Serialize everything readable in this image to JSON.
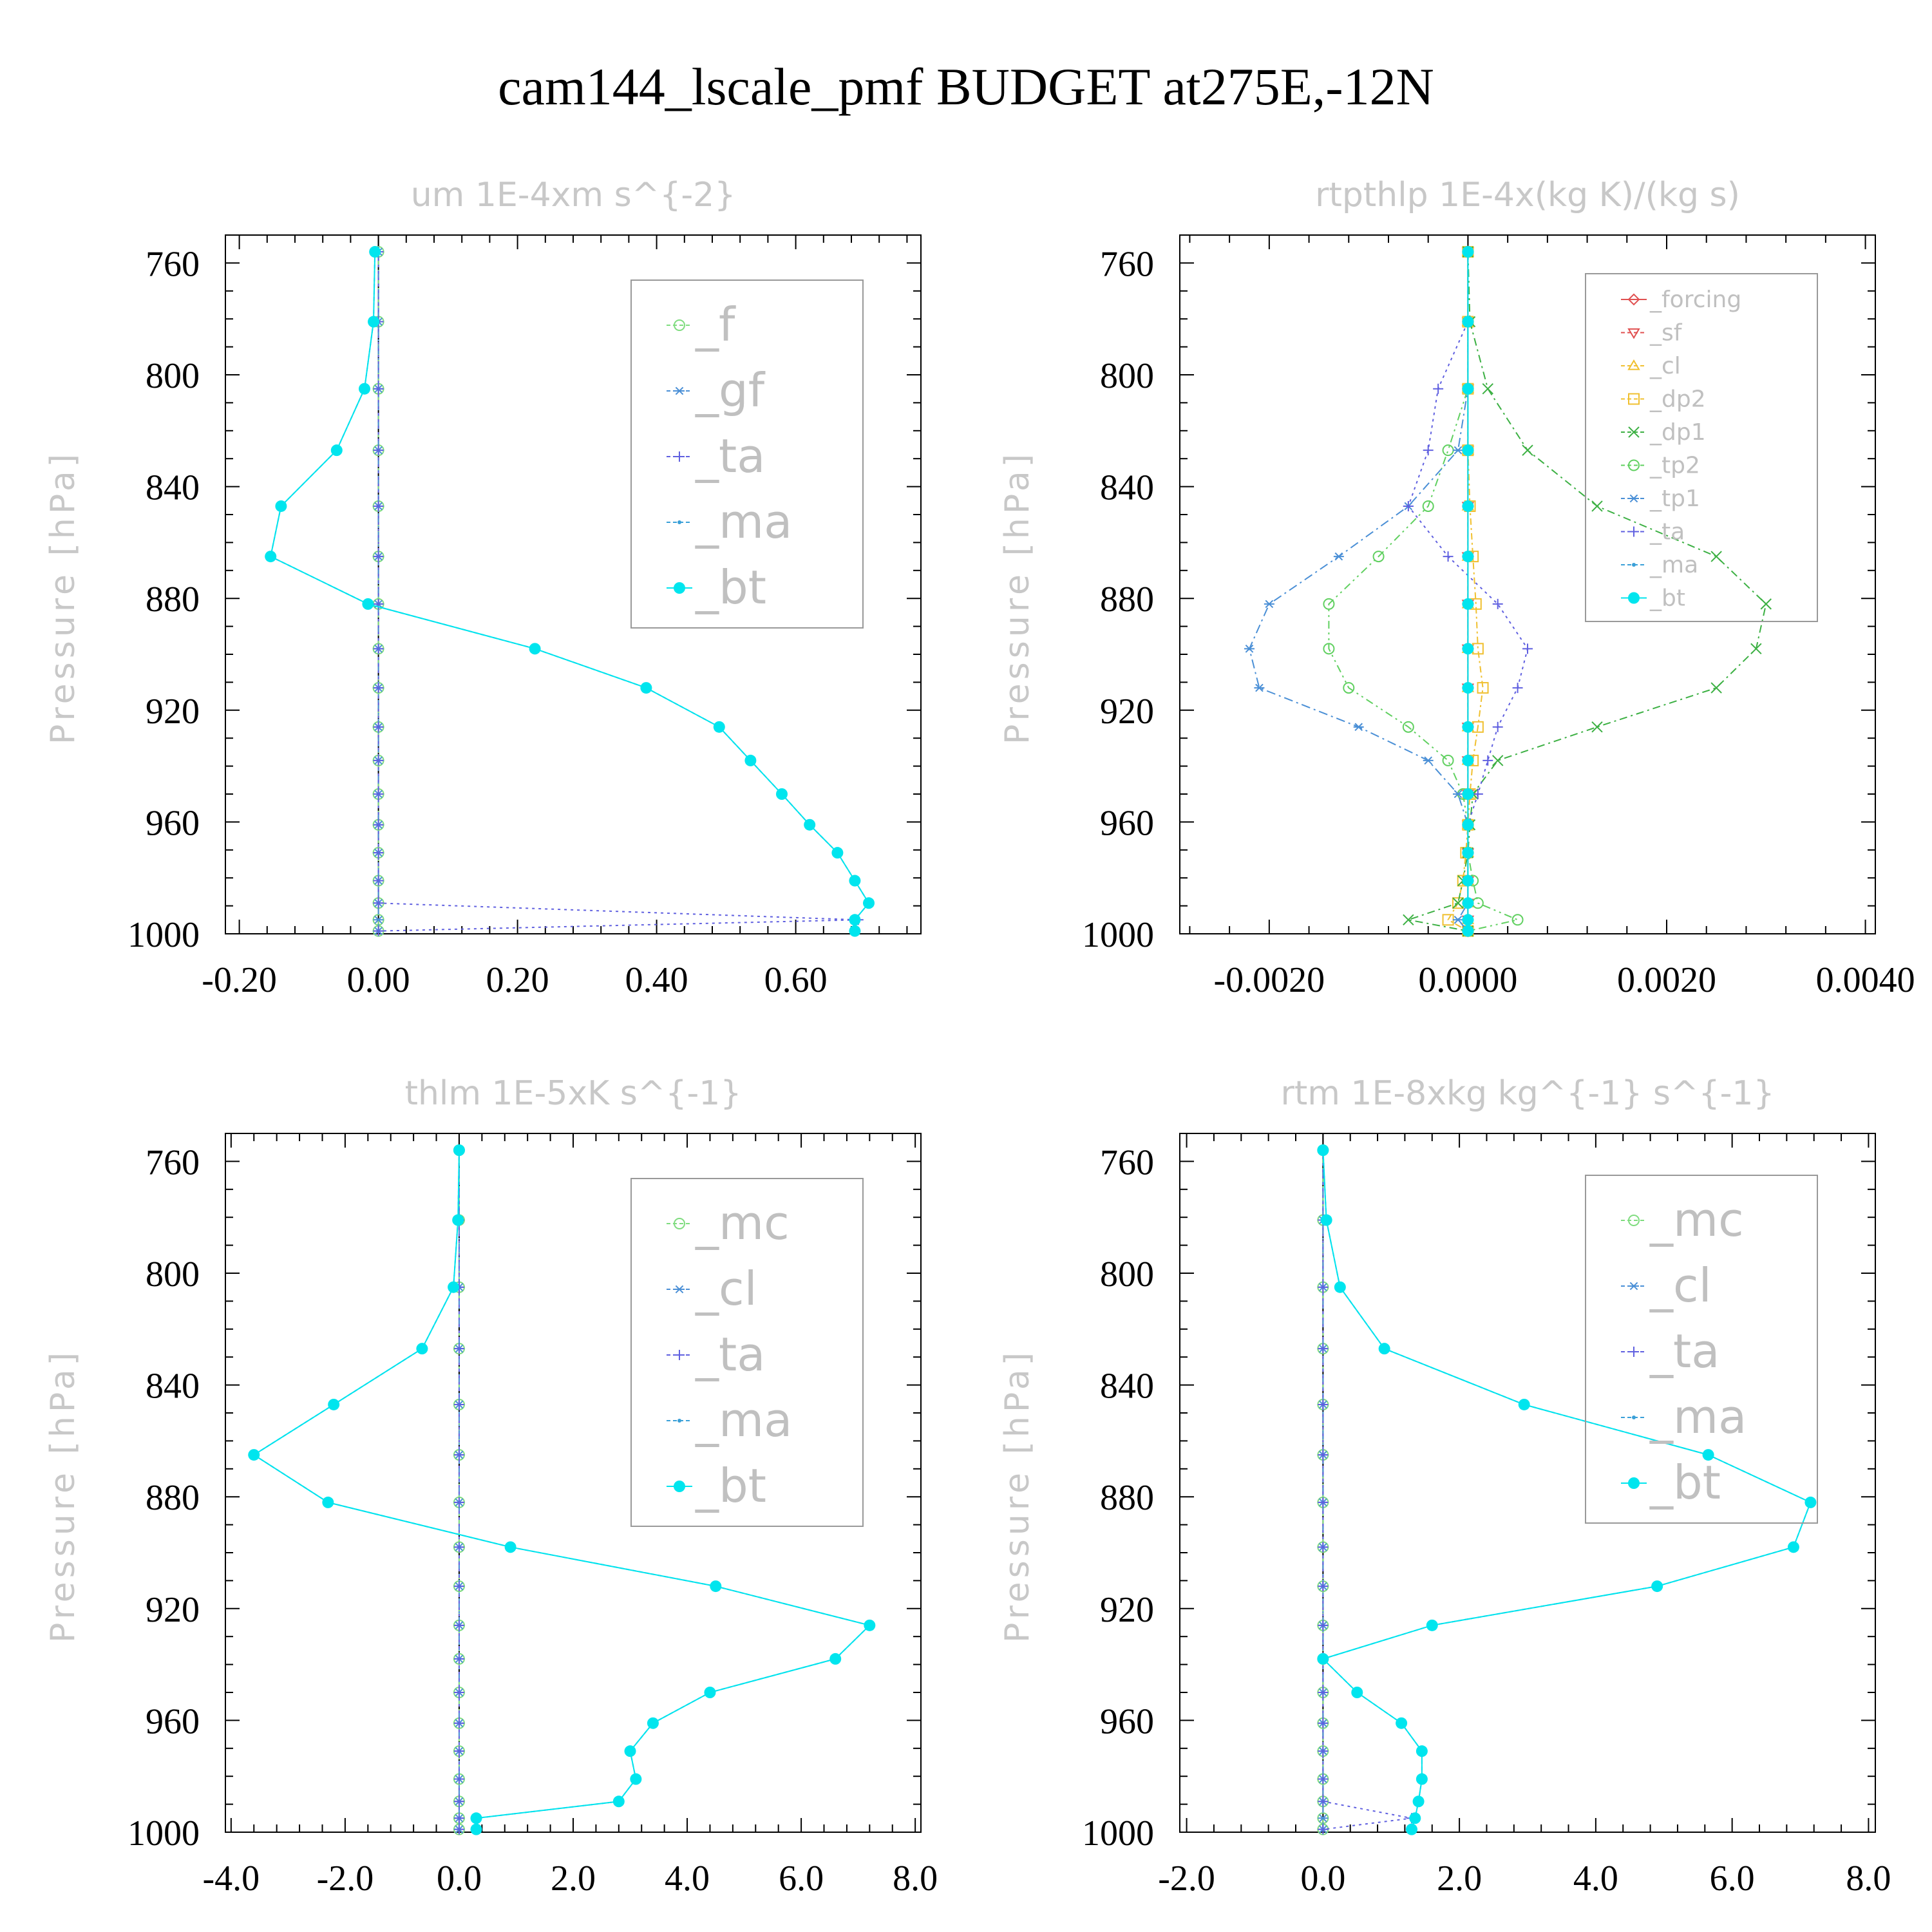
{
  "title": "cam144_lscale_pmf  BUDGET at275E,-12N",
  "chart_data": [
    {
      "type": "line",
      "title": "um   1E-4xm s^{-2}",
      "ylabel": "Pressure [hPa]",
      "ylim": [
        1000,
        750
      ],
      "yticks": [
        760,
        800,
        840,
        880,
        920,
        960,
        1000
      ],
      "xlim": [
        -0.22,
        0.78
      ],
      "xticks": [
        -0.2,
        0.0,
        0.2,
        0.4,
        0.6
      ],
      "xtick_labels": [
        "-0.20",
        "0.00",
        "0.20",
        "0.40",
        "0.60"
      ],
      "legend_position": "top-right",
      "pressure": [
        756,
        781,
        805,
        827,
        847,
        865,
        882,
        898,
        912,
        926,
        938,
        950,
        961,
        971,
        981,
        989,
        995,
        999
      ],
      "series": [
        {
          "name": "_f",
          "color": "#7fdc7f",
          "marker": "circle-open",
          "dash": "8,6",
          "values": [
            0,
            0,
            0,
            0,
            0,
            0,
            0,
            0,
            0,
            0,
            0,
            0,
            0,
            0,
            0,
            0,
            0,
            0
          ]
        },
        {
          "name": "_gf",
          "color": "#4a8fd6",
          "marker": "asterisk",
          "dash": "14,6,3,6",
          "values": [
            0,
            0,
            0,
            0,
            0,
            0,
            0,
            0,
            0,
            0,
            0,
            0,
            0,
            0,
            0,
            0,
            0,
            0
          ]
        },
        {
          "name": "_ta",
          "color": "#6060e0",
          "marker": "plus",
          "dash": "4,6",
          "values": [
            0,
            0,
            0,
            0,
            0,
            0,
            0,
            0,
            0,
            0,
            0,
            0,
            0,
            0,
            0,
            0,
            0.69,
            0.0
          ]
        },
        {
          "name": "_ma",
          "color": "#3aa0d8",
          "marker": "dot",
          "dash": "6,4",
          "values": [
            -0.005,
            -0.007,
            -0.02,
            -0.06,
            -0.14,
            -0.155,
            -0.015,
            0.225,
            0.385,
            0.49,
            0.535,
            0.58,
            0.62,
            0.66,
            0.685,
            0.705,
            0.685,
            0.685
          ]
        },
        {
          "name": "_bt",
          "color": "#00e5ee",
          "marker": "dot-big",
          "dash": "none",
          "values": [
            -0.005,
            -0.007,
            -0.02,
            -0.06,
            -0.14,
            -0.155,
            -0.015,
            0.225,
            0.385,
            0.49,
            0.535,
            0.58,
            0.62,
            0.66,
            0.685,
            0.705,
            0.685,
            0.685
          ]
        }
      ]
    },
    {
      "type": "line",
      "title": "rtpthlp   1E-4x(kg K)/(kg s)",
      "ylabel": "Pressure [hPa]",
      "ylim": [
        1000,
        750
      ],
      "yticks": [
        760,
        800,
        840,
        880,
        920,
        960,
        1000
      ],
      "xlim": [
        -0.0029,
        0.0041
      ],
      "xticks": [
        -0.002,
        0.0,
        0.002,
        0.004
      ],
      "xtick_labels": [
        "-0.0020",
        "0.0000",
        "0.0020",
        "0.0040"
      ],
      "legend_position": "top-right",
      "pressure": [
        756,
        781,
        805,
        827,
        847,
        865,
        882,
        898,
        912,
        926,
        938,
        950,
        961,
        971,
        981,
        989,
        995,
        999
      ],
      "series": [
        {
          "name": "_forcing",
          "color": "#e05050",
          "marker": "diamond-open",
          "dash": "none",
          "values": [
            0,
            0,
            0,
            0,
            0,
            0,
            0,
            0,
            0,
            0,
            0,
            0,
            0,
            0,
            0,
            0,
            0,
            0
          ]
        },
        {
          "name": "_sf",
          "color": "#e05050",
          "marker": "triangle-down",
          "dash": "8,6",
          "values": [
            0,
            0,
            0,
            0,
            0,
            0,
            0,
            0,
            0,
            0,
            0,
            0,
            0,
            0,
            0,
            0,
            0,
            0
          ]
        },
        {
          "name": "_cl",
          "color": "#f0c030",
          "marker": "triangle-up",
          "dash": "4,6",
          "values": [
            0,
            0,
            0,
            0,
            0,
            0,
            0,
            0,
            0,
            0,
            0,
            0,
            0,
            0,
            0,
            0,
            0,
            0
          ]
        },
        {
          "name": "_dp2",
          "color": "#f0c030",
          "marker": "square-open",
          "dash": "10,5,3,5",
          "values": [
            0,
            0,
            0,
            0,
            2e-05,
            5e-05,
            8e-05,
            0.0001,
            0.00015,
            0.0001,
            5e-05,
            2e-05,
            0,
            -2e-05,
            -5e-05,
            -0.0001,
            -0.0002,
            0
          ]
        },
        {
          "name": "_dp1",
          "color": "#3cb043",
          "marker": "x",
          "dash": "12,6,3,6",
          "values": [
            0,
            2e-05,
            0.0002,
            0.0006,
            0.0013,
            0.0025,
            0.003,
            0.0029,
            0.0025,
            0.0013,
            0.0003,
            5e-05,
            2e-05,
            0,
            -5e-05,
            -0.0001,
            -0.0006,
            0
          ]
        },
        {
          "name": "_tp2",
          "color": "#60d060",
          "marker": "circle-open",
          "dash": "12,6,3,6,3,6",
          "values": [
            0,
            0,
            0,
            -0.0002,
            -0.0004,
            -0.0009,
            -0.0014,
            -0.0014,
            -0.0012,
            -0.0006,
            -0.0002,
            -5e-05,
            0,
            0,
            5e-05,
            0.0001,
            0.0005,
            0
          ]
        },
        {
          "name": "_tp1",
          "color": "#4a8fd6",
          "marker": "asterisk",
          "dash": "14,6,3,6",
          "values": [
            0,
            0,
            0,
            -0.0001,
            -0.0006,
            -0.0013,
            -0.002,
            -0.0022,
            -0.0021,
            -0.0011,
            -0.0004,
            -0.0001,
            0,
            0,
            0,
            0,
            -0.0001,
            0
          ]
        },
        {
          "name": "_ta",
          "color": "#6060e0",
          "marker": "plus",
          "dash": "4,6",
          "values": [
            0,
            0,
            -0.0003,
            -0.0004,
            -0.0006,
            -0.0002,
            0.0003,
            0.0006,
            0.0005,
            0.0003,
            0.0002,
            0.0001,
            0,
            0,
            0,
            0,
            0,
            0
          ]
        },
        {
          "name": "_ma",
          "color": "#3aa0d8",
          "marker": "dot",
          "dash": "6,4",
          "values": [
            0,
            0,
            0,
            0,
            0,
            0,
            0,
            0,
            0,
            0,
            0,
            0,
            0,
            0,
            0,
            0,
            0,
            0
          ]
        },
        {
          "name": "_bt",
          "color": "#00e5ee",
          "marker": "dot-big",
          "dash": "none",
          "values": [
            0,
            0,
            0,
            0,
            0,
            0,
            0,
            0,
            0,
            0,
            0,
            0,
            0,
            0,
            0,
            0,
            0,
            0
          ]
        }
      ]
    },
    {
      "type": "line",
      "title": "thlm   1E-5xK s^{-1}",
      "ylabel": "Pressure [hPa]",
      "ylim": [
        1000,
        750
      ],
      "yticks": [
        760,
        800,
        840,
        880,
        920,
        960,
        1000
      ],
      "xlim": [
        -4.1,
        8.1
      ],
      "xticks": [
        -4,
        -2,
        0,
        2,
        4,
        6,
        8
      ],
      "xtick_labels": [
        "-4.0",
        "-2.0",
        "0.0",
        "2.0",
        "4.0",
        "6.0",
        "8.0"
      ],
      "legend_position": "top-right",
      "pressure": [
        756,
        781,
        805,
        827,
        847,
        865,
        882,
        898,
        912,
        926,
        938,
        950,
        961,
        971,
        981,
        989,
        995,
        999
      ],
      "series": [
        {
          "name": "_mc",
          "color": "#7fdc7f",
          "marker": "circle-open",
          "dash": "8,6",
          "values": [
            0,
            0,
            0,
            0,
            0,
            0,
            0,
            0,
            0,
            0,
            0,
            0,
            0,
            0,
            0,
            0,
            0,
            0
          ]
        },
        {
          "name": "_cl",
          "color": "#4a8fd6",
          "marker": "asterisk",
          "dash": "14,6,3,6",
          "values": [
            0,
            0,
            0,
            0,
            0,
            0,
            0,
            0,
            0,
            0,
            0,
            0,
            0,
            0,
            0,
            0,
            0,
            0
          ]
        },
        {
          "name": "_ta",
          "color": "#6060e0",
          "marker": "plus",
          "dash": "4,6",
          "values": [
            0,
            0,
            0,
            0,
            0,
            0,
            0,
            0,
            0,
            0,
            0,
            0,
            0,
            0,
            0,
            0,
            0,
            0
          ]
        },
        {
          "name": "_ma",
          "color": "#3aa0d8",
          "marker": "dot",
          "dash": "6,4",
          "values": [
            0,
            -0.02,
            -0.1,
            -0.65,
            -2.2,
            -3.6,
            -2.3,
            0.9,
            4.5,
            7.2,
            6.6,
            4.4,
            3.4,
            3.0,
            3.1,
            2.8,
            0.3,
            0.3
          ]
        },
        {
          "name": "_bt",
          "color": "#00e5ee",
          "marker": "dot-big",
          "dash": "none",
          "values": [
            0,
            -0.02,
            -0.1,
            -0.65,
            -2.2,
            -3.6,
            -2.3,
            0.9,
            4.5,
            7.2,
            6.6,
            4.4,
            3.4,
            3.0,
            3.1,
            2.8,
            0.3,
            0.3
          ]
        }
      ]
    },
    {
      "type": "line",
      "title": "rtm   1E-8xkg kg^{-1} s^{-1}",
      "ylabel": "Pressure [hPa]",
      "ylim": [
        1000,
        750
      ],
      "yticks": [
        760,
        800,
        840,
        880,
        920,
        960,
        1000
      ],
      "xlim": [
        -2.1,
        8.1
      ],
      "xticks": [
        -2,
        0,
        2,
        4,
        6,
        8
      ],
      "xtick_labels": [
        "-2.0",
        "0.0",
        "2.0",
        "4.0",
        "6.0",
        "8.0"
      ],
      "legend_position": "top-right",
      "pressure": [
        756,
        781,
        805,
        827,
        847,
        865,
        882,
        898,
        912,
        926,
        938,
        950,
        961,
        971,
        981,
        989,
        995,
        999
      ],
      "series": [
        {
          "name": "_mc",
          "color": "#7fdc7f",
          "marker": "circle-open",
          "dash": "8,6",
          "values": [
            0,
            0,
            0,
            0,
            0,
            0,
            0,
            0,
            0,
            0,
            0,
            0,
            0,
            0,
            0,
            0,
            0,
            0
          ]
        },
        {
          "name": "_cl",
          "color": "#4a8fd6",
          "marker": "asterisk",
          "dash": "14,6,3,6",
          "values": [
            0,
            0,
            0,
            0,
            0,
            0,
            0,
            0,
            0,
            0,
            0,
            0,
            0,
            0,
            0,
            0,
            0,
            0
          ]
        },
        {
          "name": "_ta",
          "color": "#6060e0",
          "marker": "plus",
          "dash": "4,6",
          "values": [
            0,
            0,
            0,
            0,
            0,
            0,
            0,
            0,
            0,
            0,
            0,
            0,
            0,
            0,
            0,
            0,
            1.3,
            0.0
          ]
        },
        {
          "name": "_ma",
          "color": "#3aa0d8",
          "marker": "dot",
          "dash": "6,4",
          "values": [
            0,
            0.05,
            0.25,
            0.9,
            2.95,
            5.65,
            7.15,
            6.9,
            4.9,
            1.6,
            0,
            0.5,
            1.15,
            1.45,
            1.45,
            1.4,
            1.35,
            1.3
          ]
        },
        {
          "name": "_bt",
          "color": "#00e5ee",
          "marker": "dot-big",
          "dash": "none",
          "values": [
            0,
            0.05,
            0.25,
            0.9,
            2.95,
            5.65,
            7.15,
            6.9,
            4.9,
            1.6,
            0,
            0.5,
            1.15,
            1.45,
            1.45,
            1.4,
            1.35,
            1.3
          ]
        }
      ]
    }
  ]
}
